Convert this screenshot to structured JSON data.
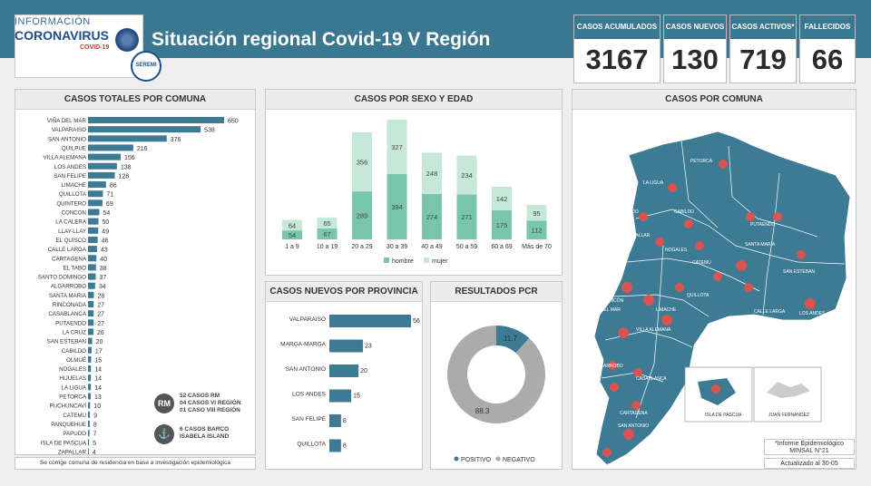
{
  "header": {
    "logo_line1": "INFORMACIÓN",
    "logo_line2": "CORONAVIRUS",
    "logo_line3": "COVID-19",
    "seremi": "SEREMI",
    "title": "Situación regional Covid-19 V Región"
  },
  "stats": [
    {
      "label": "CASOS ACUMULADOS",
      "value": "3167"
    },
    {
      "label": "CASOS NUEVOS",
      "value": "130"
    },
    {
      "label": "CASOS ACTIVOS*",
      "value": "719"
    },
    {
      "label": "FALLECIDOS",
      "value": "66"
    }
  ],
  "panels": {
    "comuna_title": "CASOS TOTALES POR COMUNA",
    "sexo_title": "CASOS POR SEXO Y EDAD",
    "provincia_title": "CASOS NUEVOS  POR PROVINCIA",
    "pcr_title": "RESULTADOS PCR",
    "map_title": "CASOS POR COMUNA"
  },
  "footnote": "Se corrige comuna de residencia en base a investigación epidemiológica",
  "notes": {
    "rm_badge": "RM",
    "rm_text": [
      "52 CASOS RM",
      "04 CASOS VI REGIÓN",
      "01 CASO VIII REGIÓN"
    ],
    "ship_text": [
      "6 CASOS BARCO",
      "ISABELA ISLAND"
    ],
    "informe": [
      "*Informe Epidemiológico",
      "MINSAL N°21"
    ],
    "actualizado": "Actualizado al 30-05"
  },
  "map": {
    "inset1": "ISLA DE PASCUA",
    "inset2": "JUAN FERNÁNDEZ",
    "labels": [
      "PETORCA",
      "LA LIGUA",
      "CABILDO",
      "PAPUDO",
      "ZAPALLAR",
      "PUTAENDO",
      "NOGALES",
      "CATEMU",
      "SANTA MARÍA",
      "SAN ESTEBAN",
      "LOS ANDES",
      "CALLE LARGA",
      "CONCÓN",
      "VIÑA DEL MAR",
      "QUILLOTA",
      "LIMACHE",
      "VILLA ALEMANA",
      "ALGARROBO",
      "EL QUISCO",
      "EL TABO",
      "CARTAGENA",
      "SAN ANTONIO",
      "SANTO DOMINGO",
      "CASABLANCA"
    ],
    "color": "#3d7a93"
  },
  "chart_data": [
    {
      "type": "bar",
      "orientation": "horizontal",
      "title": "CASOS TOTALES POR COMUNA",
      "categories": [
        "VIÑA DEL MAR",
        "VALPARAISO",
        "SAN ANTONIO",
        "QUILPUE",
        "VILLA ALEMANA",
        "LOS ANDES",
        "SAN FELIPE",
        "LIMACHE",
        "QUILLOTA",
        "QUINTERO",
        "CONCON",
        "LA CALERA",
        "LLAY-LLAY",
        "EL QUISCO",
        "CALLE LARGA",
        "CARTAGENA",
        "EL TABO",
        "SANTO DOMINGO",
        "ALGARROBO",
        "SANTA MARIA",
        "RINCONADA",
        "CASABLANCA",
        "PUTAENDO",
        "LA CRUZ",
        "SAN ESTEBAN",
        "CABILDO",
        "OLMUÉ",
        "NOGALES",
        "HIJUELAS",
        "LA LIGUA",
        "PETORCA",
        "PUCHUNCAVÍ",
        "CATEMU",
        "PANQUEHUE",
        "PAPUDO",
        "ISLA DE PASCUA",
        "ZAPALLAR"
      ],
      "values": [
        650,
        538,
        376,
        216,
        156,
        138,
        128,
        86,
        71,
        69,
        54,
        50,
        49,
        46,
        43,
        40,
        38,
        37,
        34,
        28,
        27,
        27,
        27,
        26,
        20,
        17,
        15,
        14,
        14,
        14,
        13,
        10,
        9,
        8,
        7,
        5,
        4
      ],
      "color": "#3d7a93"
    },
    {
      "type": "bar",
      "stacked": true,
      "title": "CASOS POR SEXO Y EDAD",
      "categories": [
        "1 a 9",
        "10 a 19",
        "20 a 29",
        "30 a 39",
        "40 a 49",
        "50 a 59",
        "60 a 69",
        "Más de 70"
      ],
      "series": [
        {
          "name": "hombre",
          "values": [
            54,
            67,
            289,
            394,
            274,
            271,
            175,
            112
          ],
          "color": "#79c6ad"
        },
        {
          "name": "mujer",
          "values": [
            64,
            65,
            356,
            327,
            248,
            234,
            142,
            95
          ],
          "color": "#c6e8d8"
        }
      ],
      "legend": "bottom"
    },
    {
      "type": "bar",
      "orientation": "horizontal",
      "title": "CASOS NUEVOS  POR PROVINCIA",
      "categories": [
        "VALPARAISO",
        "MARGA-MARGA",
        "SAN ANTONIO",
        "LOS ANDES",
        "SAN FELIPE",
        "QUILLOTA"
      ],
      "values": [
        56,
        23,
        20,
        15,
        8,
        8
      ],
      "color": "#3d7a93"
    },
    {
      "type": "pie",
      "donut": true,
      "title": "RESULTADOS PCR",
      "categories": [
        "POSITIVO",
        "NEGATIVO"
      ],
      "values": [
        11.7,
        88.3
      ],
      "colors": [
        "#3d7a93",
        "#ababab"
      ],
      "legend": "bottom"
    }
  ]
}
